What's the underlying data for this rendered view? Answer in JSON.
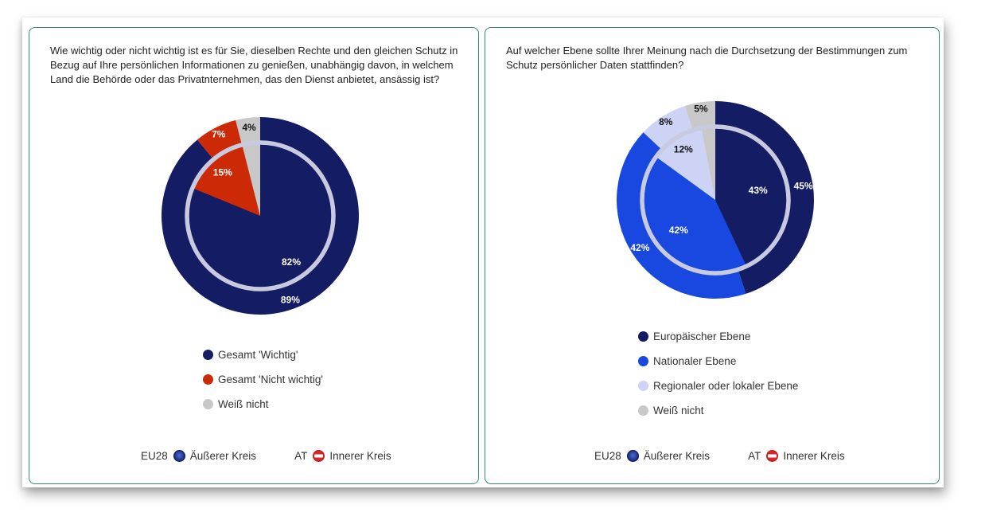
{
  "colors": {
    "panel_border": "#2e8b7a",
    "dark_navy": "#141c64",
    "red": "#cc2a06",
    "grey": "#c8c8c8",
    "bright_blue": "#1848e0",
    "lavender": "#ccd3f4",
    "inner_ring": "#c8cbe0"
  },
  "left": {
    "question": "Wie wichtig oder nicht wichtig ist es für Sie, dieselben Rechte und den gleichen Schutz in Bezug auf Ihre persönlichen Informationen zu genießen, unabhängig davon, in welchem Land die Behörde oder das Privatnternehmen, das den Dienst anbietet, ansässig ist?",
    "legend": [
      "Gesamt 'Wichtig'",
      "Gesamt 'Nicht wichtig'",
      "Weiß nicht"
    ],
    "key": {
      "eu_code": "EU28",
      "eu_label": "Äußerer Kreis",
      "at_code": "AT",
      "at_label": "Innerer Kreis"
    }
  },
  "right": {
    "question": "Auf welcher Ebene sollte Ihrer Meinung nach die Durchsetzung der Bestimmungen zum Schutz persönlicher Daten stattfinden?",
    "legend": [
      "Europäischer Ebene",
      "Nationaler Ebene",
      "Regionaler oder lokaler Ebene",
      "Weiß nicht"
    ],
    "key": {
      "eu_code": "EU28",
      "eu_label": "Äußerer Kreis",
      "at_code": "AT",
      "at_label": "Innerer Kreis"
    }
  },
  "chart_data": [
    {
      "type": "pie",
      "title": "Wie wichtig oder nicht wichtig ist es für Sie, dieselben Rechte und den gleichen Schutz in Bezug auf Ihre persönlichen Informationen zu genießen, unabhängig davon, in welchem Land die Behörde oder das Privatnternehmen, das den Dienst anbietet, ansässig ist?",
      "categories": [
        "Gesamt 'Wichtig'",
        "Gesamt 'Nicht wichtig'",
        "Weiß nicht"
      ],
      "colors": [
        "#141c64",
        "#cc2a06",
        "#c8c8c8"
      ],
      "series": [
        {
          "name": "Äußerer Kreis",
          "values": [
            89,
            7,
            4
          ],
          "labels": [
            "89%",
            "7%",
            "4%"
          ]
        },
        {
          "name": "Innerer Kreis",
          "values": [
            82,
            15,
            4
          ],
          "labels": [
            "82%",
            "15%",
            ""
          ]
        }
      ],
      "legend_position": "bottom"
    },
    {
      "type": "pie",
      "title": "Auf welcher Ebene sollte Ihrer Meinung nach die Durchsetzung der Bestimmungen zum Schutz persönlicher Daten stattfinden?",
      "categories": [
        "Europäischer Ebene",
        "Nationaler Ebene",
        "Regionaler oder lokaler Ebene",
        "Weiß nicht"
      ],
      "colors": [
        "#141c64",
        "#1848e0",
        "#ccd3f4",
        "#c8c8c8"
      ],
      "series": [
        {
          "name": "Äußerer Kreis",
          "values": [
            45,
            42,
            8,
            5
          ],
          "labels": [
            "45%",
            "42%",
            "8%",
            "5%"
          ]
        },
        {
          "name": "Innerer Kreis",
          "values": [
            43,
            42,
            12,
            3
          ],
          "labels": [
            "43%",
            "42%",
            "12%",
            ""
          ]
        }
      ],
      "legend_position": "bottom"
    }
  ]
}
